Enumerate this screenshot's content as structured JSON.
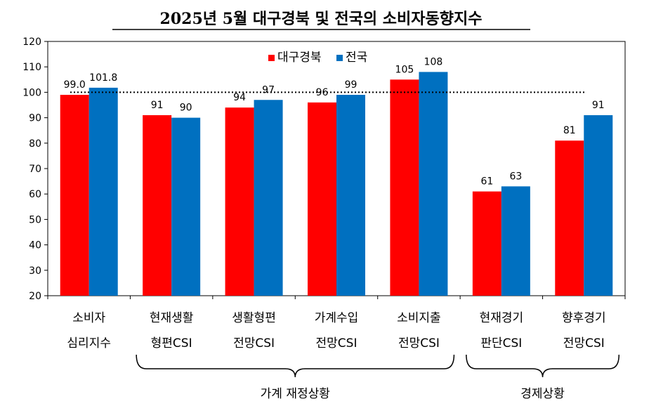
{
  "chart_data": {
    "type": "bar",
    "title": "2025년 5월 대구경북 및 전국의 소비자동향지수",
    "categories": [
      [
        "소비자",
        "심리지수"
      ],
      [
        "현재생활",
        "형편CSI"
      ],
      [
        "생활형편",
        "전망CSI"
      ],
      [
        "가계수입",
        "전망CSI"
      ],
      [
        "소비지출",
        "전망CSI"
      ],
      [
        "현재경기",
        "판단CSI"
      ],
      [
        "향후경기",
        "전망CSI"
      ]
    ],
    "series": [
      {
        "name": "대구경북",
        "color": "#ff0000",
        "values": [
          99.0,
          91,
          94,
          96,
          105,
          61,
          81
        ],
        "labels": [
          "99.0",
          "91",
          "94",
          "96",
          "105",
          "61",
          "81"
        ]
      },
      {
        "name": "전국",
        "color": "#0070c0",
        "values": [
          101.8,
          90,
          97,
          99,
          108,
          63,
          91
        ],
        "labels": [
          "101.8",
          "90",
          "97",
          "99",
          "108",
          "63",
          "91"
        ]
      }
    ],
    "ylim": [
      20,
      120
    ],
    "yticks": [
      20,
      30,
      40,
      50,
      60,
      70,
      80,
      90,
      100,
      110,
      120
    ],
    "reference_line": 100,
    "legend_position": "top-center",
    "groups": [
      {
        "label": "가계 재정상황",
        "categories": [
          1,
          4
        ]
      },
      {
        "label": "경제상황",
        "categories": [
          5,
          6
        ]
      }
    ],
    "grid": false
  }
}
